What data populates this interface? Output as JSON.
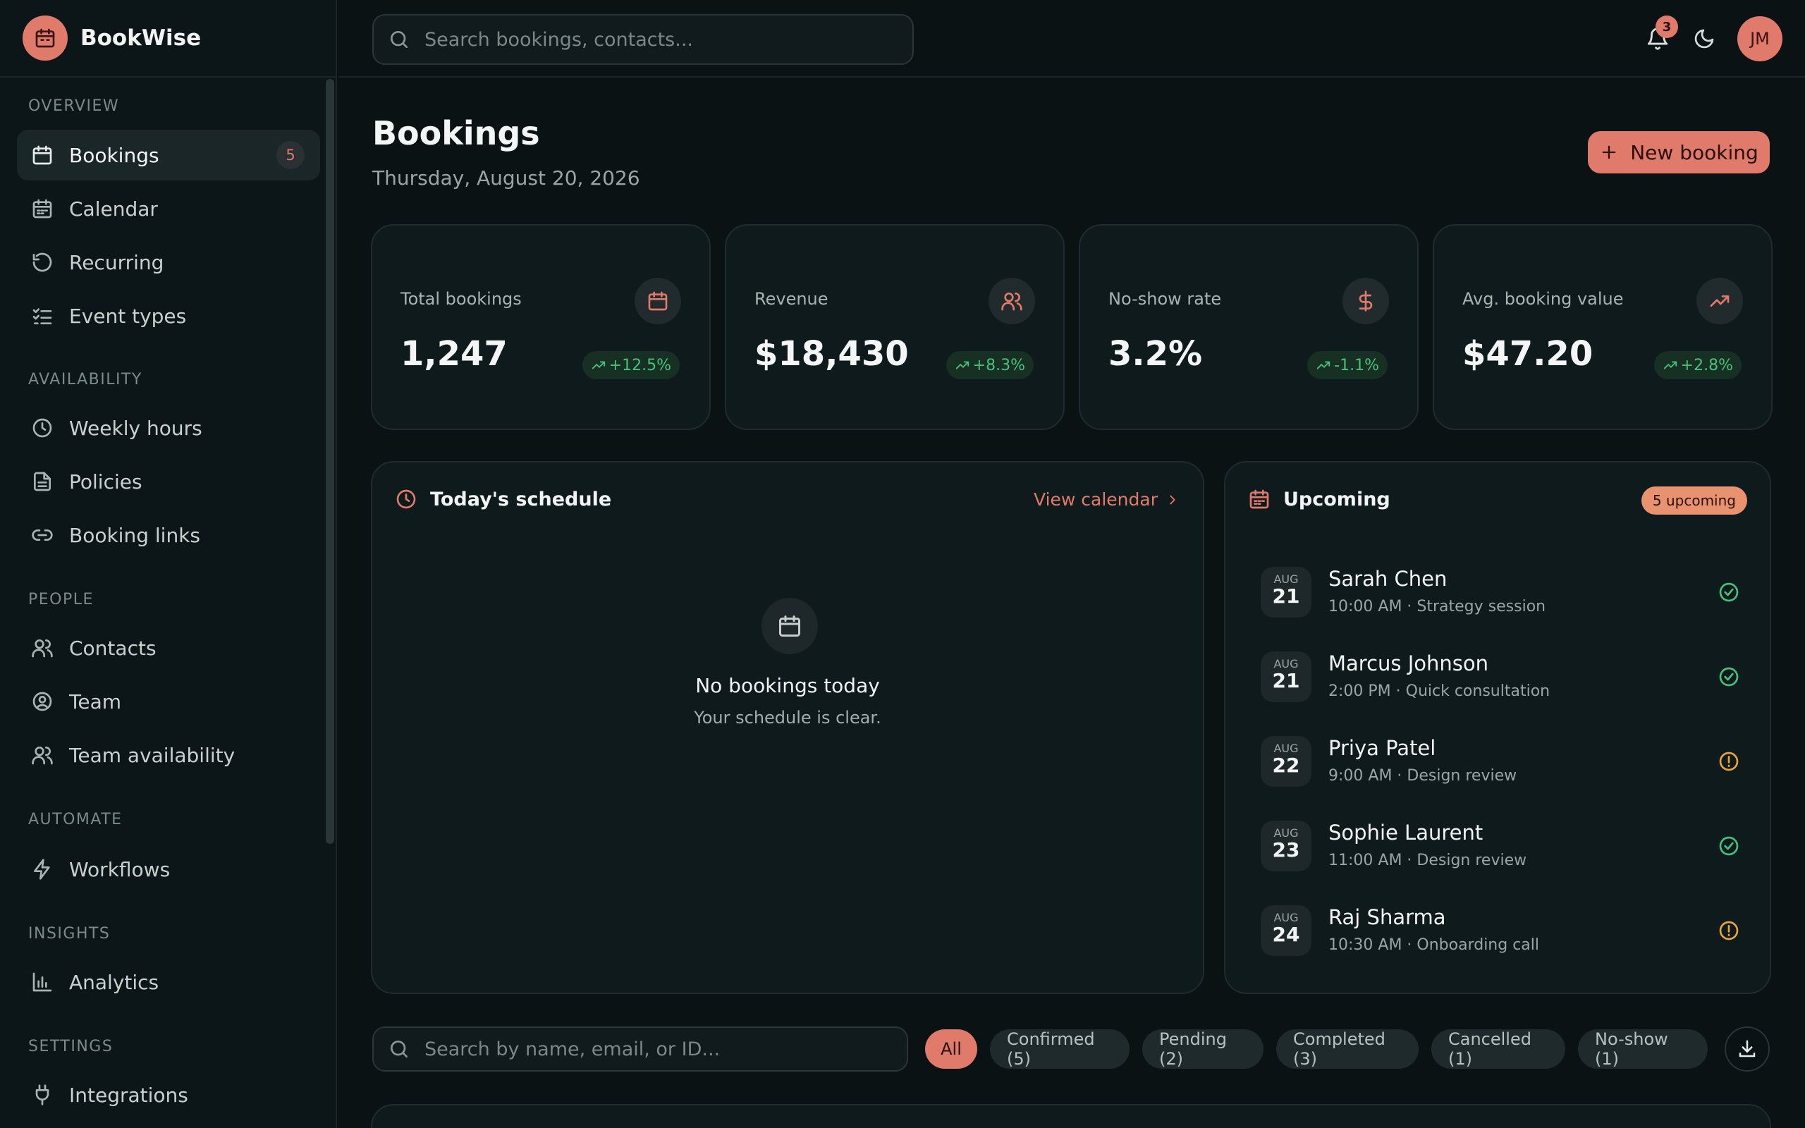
{
  "app": {
    "name": "BookWise"
  },
  "search": {
    "placeholder": "Search bookings, contacts..."
  },
  "header": {
    "notification_count": "3",
    "avatar_initials": "JM"
  },
  "sidebar": {
    "sections": [
      {
        "title": "Overview",
        "items": [
          {
            "label": "Bookings",
            "icon": "calendar-icon",
            "badge": "5",
            "active": true
          },
          {
            "label": "Calendar",
            "icon": "calendar-grid-icon"
          },
          {
            "label": "Recurring",
            "icon": "refresh-icon"
          },
          {
            "label": "Event types",
            "icon": "checklist-icon"
          }
        ]
      },
      {
        "title": "Availability",
        "items": [
          {
            "label": "Weekly hours",
            "icon": "clock-icon"
          },
          {
            "label": "Policies",
            "icon": "document-icon"
          },
          {
            "label": "Booking links",
            "icon": "link-icon"
          }
        ]
      },
      {
        "title": "People",
        "items": [
          {
            "label": "Contacts",
            "icon": "users-icon"
          },
          {
            "label": "Team",
            "icon": "user-circle-icon"
          },
          {
            "label": "Team availability",
            "icon": "users-icon"
          }
        ]
      },
      {
        "title": "Automate",
        "items": [
          {
            "label": "Workflows",
            "icon": "lightning-icon"
          }
        ]
      },
      {
        "title": "Insights",
        "items": [
          {
            "label": "Analytics",
            "icon": "bar-chart-icon"
          }
        ]
      },
      {
        "title": "Settings",
        "items": [
          {
            "label": "Integrations",
            "icon": "plug-icon"
          }
        ]
      }
    ]
  },
  "main": {
    "title": "Bookings",
    "date": "Thursday, August 20, 2026",
    "new_booking_label": "New booking"
  },
  "stats": [
    {
      "label": "Total bookings",
      "value": "1,247",
      "trend": "+12.5%",
      "icon": "calendar-icon"
    },
    {
      "label": "Revenue",
      "value": "$18,430",
      "trend": "+8.3%",
      "icon": "users-icon"
    },
    {
      "label": "No-show rate",
      "value": "3.2%",
      "trend": "-1.1%",
      "icon": "dollar-icon"
    },
    {
      "label": "Avg. booking value",
      "value": "$47.20",
      "trend": "+2.8%",
      "icon": "trending-up-icon"
    }
  ],
  "schedule": {
    "title": "Today's schedule",
    "view_calendar": "View calendar",
    "empty_title": "No bookings today",
    "empty_subtitle": "Your schedule is clear."
  },
  "upcoming": {
    "title": "Upcoming",
    "badge": "5 upcoming",
    "items": [
      {
        "month": "AUG",
        "day": "21",
        "name": "Sarah Chen",
        "meta": "10:00 AM · Strategy session",
        "status": "confirmed"
      },
      {
        "month": "AUG",
        "day": "21",
        "name": "Marcus Johnson",
        "meta": "2:00 PM · Quick consultation",
        "status": "confirmed"
      },
      {
        "month": "AUG",
        "day": "22",
        "name": "Priya Patel",
        "meta": "9:00 AM · Design review",
        "status": "pending"
      },
      {
        "month": "AUG",
        "day": "23",
        "name": "Sophie Laurent",
        "meta": "11:00 AM · Design review",
        "status": "confirmed"
      },
      {
        "month": "AUG",
        "day": "24",
        "name": "Raj Sharma",
        "meta": "10:30 AM · Onboarding call",
        "status": "pending"
      }
    ]
  },
  "filters": {
    "search_placeholder": "Search by name, email, or ID...",
    "chips": [
      {
        "label": "All",
        "active": true
      },
      {
        "label": "Confirmed (5)"
      },
      {
        "label": "Pending (2)"
      },
      {
        "label": "Completed (3)"
      },
      {
        "label": "Cancelled (1)"
      },
      {
        "label": "No-show (1)"
      }
    ]
  },
  "colors": {
    "accent": "#e07a6a",
    "success": "#46c07a",
    "warning": "#e8a53a",
    "background": "#0a1214"
  }
}
